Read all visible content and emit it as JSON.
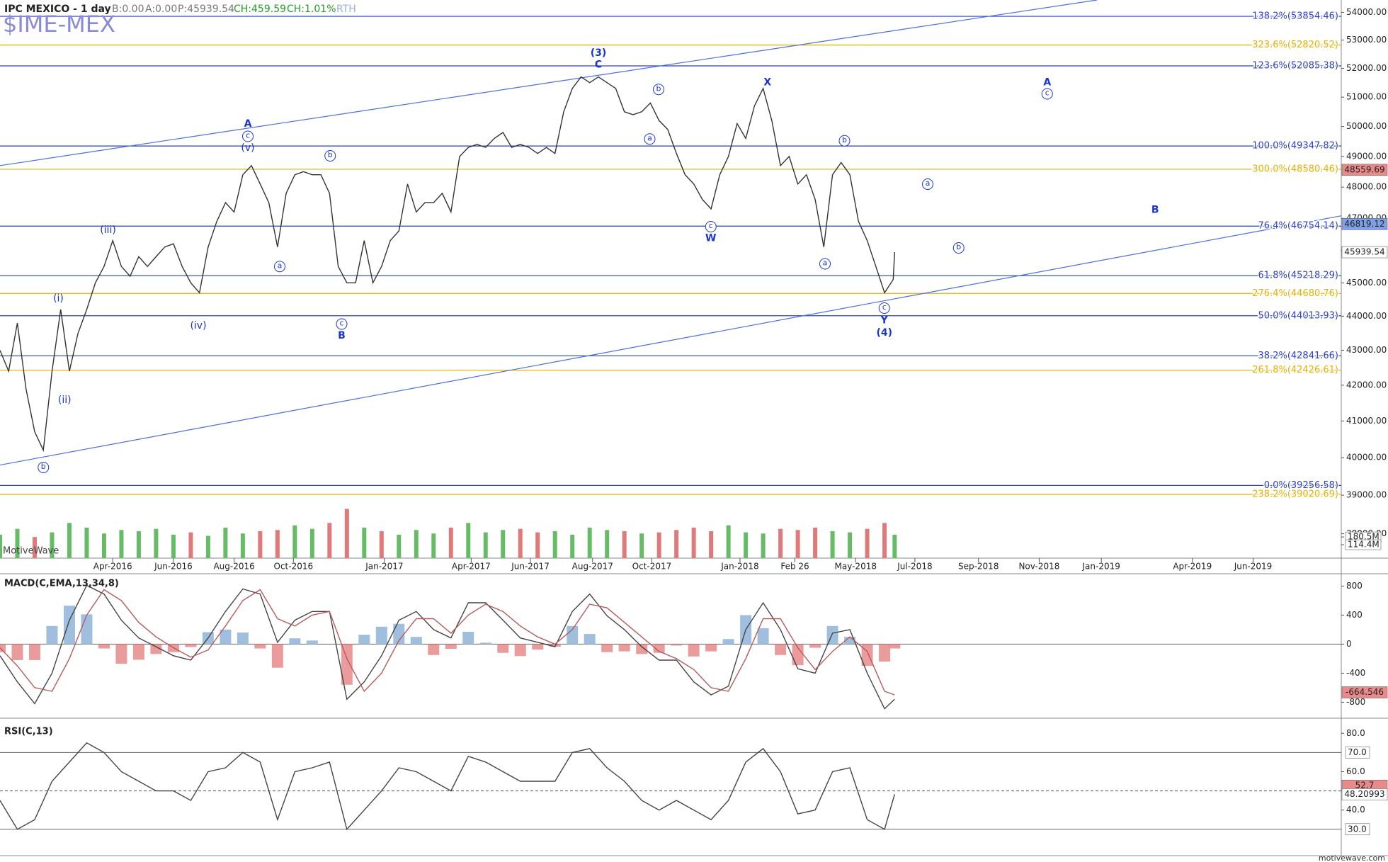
{
  "header": {
    "title": "IPC MEXICO - 1 day",
    "bid": "B:0.00",
    "ask": "A:0.00",
    "price": "P:45939.54",
    "change": "CH:459.59",
    "change_pct": "CH:1.01%",
    "session": "RTH",
    "symbol": "$IME-MEX",
    "watermark": "MotiveWave",
    "footer": "motivewave.com"
  },
  "chart_data": [
    {
      "type": "line",
      "log_scale": true,
      "x": [
        0,
        6,
        12,
        18,
        24,
        30,
        36,
        42,
        48,
        54,
        60,
        66,
        72,
        78,
        84,
        90,
        96,
        102,
        108,
        114,
        120,
        126,
        132,
        138,
        144,
        150,
        156,
        162,
        168,
        174,
        180,
        186,
        192,
        198,
        204,
        210,
        216,
        222,
        228,
        234,
        240,
        246,
        252,
        258,
        264,
        270,
        276,
        282,
        288,
        294,
        300,
        306,
        312,
        318,
        324,
        330,
        336,
        342,
        348,
        354,
        360,
        366,
        372,
        378,
        384,
        390,
        396,
        402,
        408,
        414,
        420,
        426,
        432,
        438,
        444,
        450,
        456,
        462,
        468,
        474,
        480,
        486,
        492,
        498,
        504,
        510,
        516,
        522,
        528,
        534,
        540,
        546,
        552,
        558,
        564,
        570,
        576,
        582,
        588,
        594,
        600,
        606,
        612,
        618,
        619
      ],
      "series": [
        {
          "color": "#333333",
          "values": [
            43000,
            42400,
            43800,
            41900,
            40700,
            40200,
            42400,
            44200,
            42400,
            43500,
            44200,
            45000,
            45500,
            46300,
            45500,
            45200,
            45800,
            45500,
            45800,
            46100,
            46200,
            45500,
            45000,
            44700,
            46100,
            46900,
            47500,
            47200,
            48400,
            48700,
            48100,
            47500,
            46100,
            47800,
            48400,
            48500,
            48400,
            48400,
            47800,
            45500,
            45000,
            45000,
            46300,
            45000,
            45500,
            46300,
            46600,
            48100,
            47200,
            47500,
            47500,
            47800,
            47200,
            49000,
            49300,
            49400,
            49300,
            49600,
            49800,
            49300,
            49400,
            49300,
            49100,
            49300,
            49100,
            50500,
            51300,
            51700,
            51500,
            51700,
            51500,
            51300,
            50500,
            50400,
            50500,
            50800,
            50200,
            49900,
            49100,
            48400,
            48100,
            47600,
            47300,
            48400,
            49000,
            50100,
            49600,
            50700,
            51300,
            50200,
            48700,
            49000,
            48100,
            48400,
            47600,
            46100,
            48400,
            48800,
            48400,
            46900,
            46300,
            45500,
            44700,
            45100,
            45939.54
          ]
        }
      ],
      "xlim": [
        0,
        928
      ],
      "xticks": [
        {
          "value": 78,
          "label": "Apr-2016"
        },
        {
          "value": 120,
          "label": "Jun-2016"
        },
        {
          "value": 162,
          "label": "Aug-2016"
        },
        {
          "value": 203,
          "label": "Oct-2016"
        },
        {
          "value": 266,
          "label": "Jan-2017"
        },
        {
          "value": 326,
          "label": "Apr-2017"
        },
        {
          "value": 367,
          "label": "Jun-2017"
        },
        {
          "value": 410,
          "label": "Aug-2017"
        },
        {
          "value": 451,
          "label": "Oct-2017"
        },
        {
          "value": 512,
          "label": "Jan-2018"
        },
        {
          "value": 550,
          "label": "Feb 26"
        },
        {
          "value": 592,
          "label": "May-2018"
        },
        {
          "value": 633,
          "label": "Jul-2018"
        },
        {
          "value": 677,
          "label": "Sep-2018"
        },
        {
          "value": 719,
          "label": "Nov-2018"
        },
        {
          "value": 762,
          "label": "Jan-2019"
        },
        {
          "value": 825,
          "label": "Apr-2019"
        },
        {
          "value": 867,
          "label": "Jun-2019"
        }
      ],
      "ylim": [
        37380,
        54450
      ],
      "yticks": [
        {
          "value": 54000,
          "label": "54000.00"
        },
        {
          "value": 53000,
          "label": "53000.00"
        },
        {
          "value": 52000,
          "label": "52000.00"
        },
        {
          "value": 51000,
          "label": "51000.00"
        },
        {
          "value": 50000,
          "label": "50000.00"
        },
        {
          "value": 49000,
          "label": "49000.00"
        },
        {
          "value": 48000,
          "label": "48000.00"
        },
        {
          "value": 47000,
          "label": "47000.00"
        },
        {
          "value": 46000,
          "label": "46000.00"
        },
        {
          "value": 45000,
          "label": "45000.00"
        },
        {
          "value": 44000,
          "label": "44000.00"
        },
        {
          "value": 43000,
          "label": "43000.00"
        },
        {
          "value": 42000,
          "label": "42000.00"
        },
        {
          "value": 41000,
          "label": "41000.00"
        },
        {
          "value": 40000,
          "label": "40000.00"
        },
        {
          "value": 39000,
          "label": "39000.00"
        },
        {
          "value": 38000,
          "label": "38000.00"
        }
      ],
      "fib_levels": [
        {
          "label": "138.2%(53854.46)",
          "value": 53854.46,
          "color": "#2a3fc4"
        },
        {
          "label": "323.6%(52820.52)",
          "value": 52820.52,
          "color": "#e8b000"
        },
        {
          "label": "123.6%(52085.38)",
          "value": 52085.38,
          "color": "#2a3fc4"
        },
        {
          "label": "100.0%(49347.82)",
          "value": 49347.82,
          "color": "#2a3fc4"
        },
        {
          "label": "300.0%(48580.46)",
          "value": 48580.46,
          "color": "#e8b000"
        },
        {
          "label": "76.4%(46754.14)",
          "value": 46754.14,
          "color": "#2a3fc4"
        },
        {
          "label": "61.8%(45218.29)",
          "value": 45218.29,
          "color": "#2a3fc4"
        },
        {
          "label": "276.4%(44680.76)",
          "value": 44680.76,
          "color": "#e8b000"
        },
        {
          "label": "50.0%(44013.93)",
          "value": 44013.93,
          "color": "#2a3fc4"
        },
        {
          "label": "38.2%(42841.66)",
          "value": 42841.66,
          "color": "#2a3fc4"
        },
        {
          "label": "261.8%(42426.61)",
          "value": 42426.61,
          "color": "#e8b000"
        },
        {
          "label": "0.0%(39256.58)",
          "value": 39256.58,
          "color": "#2a3fc4"
        },
        {
          "label": "238.2%(39020.69)",
          "value": 39020.69,
          "color": "#e8b000"
        }
      ],
      "price_markers": [
        {
          "value": 48559.69,
          "color": "#e88a8a"
        },
        {
          "value": 46819.12,
          "color": "#7f9fe6"
        },
        {
          "value": 45939.54,
          "color": "#ffffff"
        }
      ],
      "trendlines": [
        {
          "points": [
            [
              0,
              48700
            ],
            [
              759,
              54450
            ]
          ],
          "color": "#4a6fe0"
        },
        {
          "points": [
            [
              0,
              39800
            ],
            [
              928,
              47080
            ]
          ],
          "color": "#4a6fe0"
        }
      ],
      "wave_color": "#1a35d0",
      "wave_labels": [
        "(3)",
        "C",
        "A",
        "c",
        "(v)",
        "b",
        "(iii)",
        "a",
        "(i)",
        "(iv)",
        "c",
        "B",
        "(ii)",
        "b",
        "b",
        "a",
        "X",
        "c",
        "W",
        "b",
        "a",
        "c",
        "Y",
        "(4)",
        "A",
        "c",
        "a",
        "B",
        "b"
      ],
      "volume": {
        "type": "bar",
        "colors": [
          "#66bb66",
          "#e07a7a"
        ],
        "x": [
          0,
          12,
          24,
          36,
          48,
          60,
          72,
          84,
          96,
          108,
          120,
          132,
          144,
          156,
          168,
          180,
          192,
          204,
          216,
          228,
          240,
          252,
          264,
          276,
          288,
          300,
          312,
          324,
          336,
          348,
          360,
          372,
          384,
          396,
          408,
          420,
          432,
          444,
          456,
          468,
          480,
          492,
          504,
          516,
          528,
          540,
          552,
          564,
          576,
          588,
          600,
          612,
          619
        ],
        "values": [
          200000000,
          250000000,
          180000000,
          220000000,
          300000000,
          260000000,
          210000000,
          240000000,
          230000000,
          250000000,
          200000000,
          220000000,
          190000000,
          260000000,
          210000000,
          230000000,
          240000000,
          280000000,
          250000000,
          300000000,
          420000000,
          260000000,
          230000000,
          200000000,
          240000000,
          210000000,
          260000000,
          300000000,
          220000000,
          240000000,
          250000000,
          220000000,
          230000000,
          200000000,
          260000000,
          240000000,
          230000000,
          210000000,
          220000000,
          240000000,
          260000000,
          230000000,
          280000000,
          220000000,
          210000000,
          250000000,
          240000000,
          260000000,
          230000000,
          220000000,
          250000000,
          300000000,
          200000000
        ],
        "ylim": [
          0,
          740000000
        ],
        "yticks": [
          {
            "value": 180500000,
            "label": "180.5M"
          },
          {
            "value": 114400000,
            "label": "114.4M"
          }
        ]
      }
    },
    {
      "type": "line",
      "title": "MACD(C,EMA,13,34,8)",
      "x": [
        0,
        12,
        24,
        36,
        48,
        60,
        72,
        84,
        96,
        108,
        120,
        132,
        144,
        156,
        168,
        180,
        192,
        204,
        216,
        228,
        240,
        252,
        264,
        276,
        288,
        300,
        312,
        324,
        336,
        348,
        360,
        372,
        384,
        396,
        408,
        420,
        432,
        444,
        456,
        468,
        480,
        492,
        504,
        516,
        528,
        540,
        552,
        564,
        576,
        588,
        600,
        612,
        619
      ],
      "xlim": [
        0,
        928
      ],
      "series": [
        {
          "color": "#444444",
          "values": [
            -160,
            -520,
            -820,
            -400,
            330,
            810,
            690,
            330,
            85,
            -36,
            -160,
            -220,
            85,
            450,
            760,
            690,
            25,
            330,
            450,
            450,
            -760,
            -520,
            -160,
            330,
            450,
            200,
            85,
            570,
            570,
            330,
            85,
            25,
            -36,
            450,
            690,
            390,
            200,
            -36,
            -220,
            -220,
            -520,
            -700,
            -580,
            200,
            570,
            200,
            -340,
            -400,
            150,
            200,
            -400,
            -890,
            -760
          ]
        },
        {
          "color": "#b85a5a",
          "values": [
            -50,
            -300,
            -600,
            -650,
            -200,
            400,
            750,
            600,
            300,
            100,
            -50,
            -180,
            -80,
            250,
            600,
            750,
            350,
            250,
            400,
            450,
            -200,
            -650,
            -400,
            50,
            350,
            350,
            150,
            400,
            550,
            450,
            250,
            100,
            0,
            200,
            550,
            500,
            300,
            100,
            -100,
            -200,
            -350,
            -600,
            -650,
            -200,
            350,
            350,
            -50,
            -350,
            -100,
            100,
            -100,
            -650,
            -700
          ]
        }
      ],
      "histogram": {
        "colors": [
          "#8fb4d9",
          "#e68a8a"
        ],
        "values": [
          -110,
          -220,
          -220,
          250,
          530,
          410,
          -60,
          -270,
          -215,
          -136,
          -110,
          -40,
          165,
          200,
          160,
          -60,
          -325,
          80,
          50,
          0,
          -560,
          130,
          240,
          280,
          100,
          -150,
          -65,
          170,
          20,
          -120,
          -165,
          -75,
          -36,
          250,
          140,
          -110,
          -100,
          -136,
          -120,
          -20,
          -170,
          -100,
          70,
          400,
          220,
          -150,
          -290,
          -50,
          250,
          100,
          -300,
          -240,
          -60
        ]
      },
      "ylim": [
        -1006,
        970
      ],
      "yticks": [
        800,
        400,
        0,
        -400,
        -800
      ],
      "markers": [
        {
          "value": -664.546,
          "color": "#e88a8a"
        }
      ]
    },
    {
      "type": "line",
      "title": "RSI(C,13)",
      "x": [
        0,
        12,
        24,
        36,
        48,
        60,
        72,
        84,
        96,
        108,
        120,
        132,
        144,
        156,
        168,
        180,
        192,
        204,
        216,
        228,
        240,
        252,
        264,
        276,
        288,
        300,
        312,
        324,
        336,
        348,
        360,
        372,
        384,
        396,
        408,
        420,
        432,
        444,
        456,
        468,
        480,
        492,
        504,
        516,
        528,
        540,
        552,
        564,
        576,
        588,
        600,
        612,
        619
      ],
      "xlim": [
        0,
        928
      ],
      "series": [
        {
          "color": "#444444",
          "values": [
            45,
            30,
            35,
            55,
            65,
            75,
            70,
            60,
            55,
            50,
            50,
            45,
            60,
            62,
            70,
            65,
            35,
            60,
            62,
            65,
            30,
            40,
            50,
            62,
            60,
            55,
            50,
            68,
            65,
            60,
            55,
            55,
            55,
            70,
            72,
            62,
            55,
            45,
            40,
            45,
            40,
            35,
            45,
            65,
            72,
            60,
            38,
            40,
            60,
            62,
            35,
            30,
            48.20993
          ]
        }
      ],
      "ylim": [
        17,
        86
      ],
      "yticks": [
        {
          "value": 80,
          "label": "80.0"
        },
        {
          "value": 60,
          "label": "60.0"
        },
        {
          "value": 40,
          "label": "40.0"
        }
      ],
      "levels": [
        {
          "value": 70,
          "label": "70.0"
        },
        {
          "value": 30,
          "label": "30.0"
        }
      ],
      "midline": 50,
      "markers": [
        {
          "value": 52.7,
          "color": "#e88a8a"
        },
        {
          "value": 48.20993,
          "color": "#ffffff"
        }
      ]
    }
  ]
}
